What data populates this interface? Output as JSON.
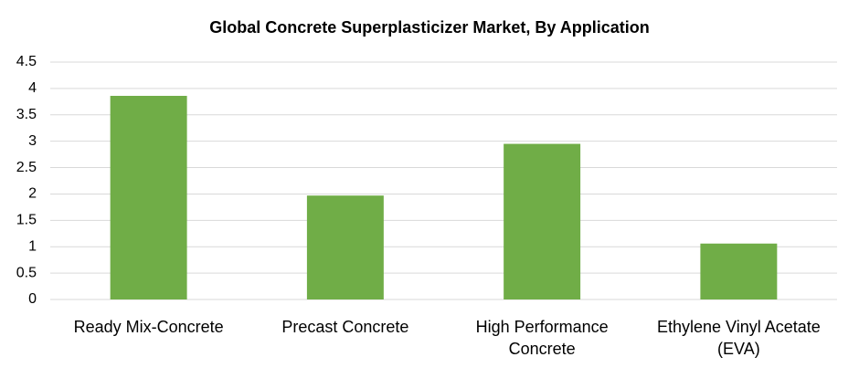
{
  "chart_data": {
    "type": "bar",
    "title": "Global Concrete Superplasticizer Market, By Application",
    "categories": [
      "Ready Mix-Concrete",
      "Precast Concrete",
      "High Performance Concrete",
      "Ethylene Vinyl Acetate (EVA)"
    ],
    "values": [
      3.86,
      1.97,
      2.95,
      1.06
    ],
    "color": "#70ad47",
    "ylim": [
      0,
      4.5
    ],
    "yticks": [
      0,
      0.5,
      1,
      1.5,
      2,
      2.5,
      3,
      3.5,
      4,
      4.5
    ],
    "grid": true
  }
}
